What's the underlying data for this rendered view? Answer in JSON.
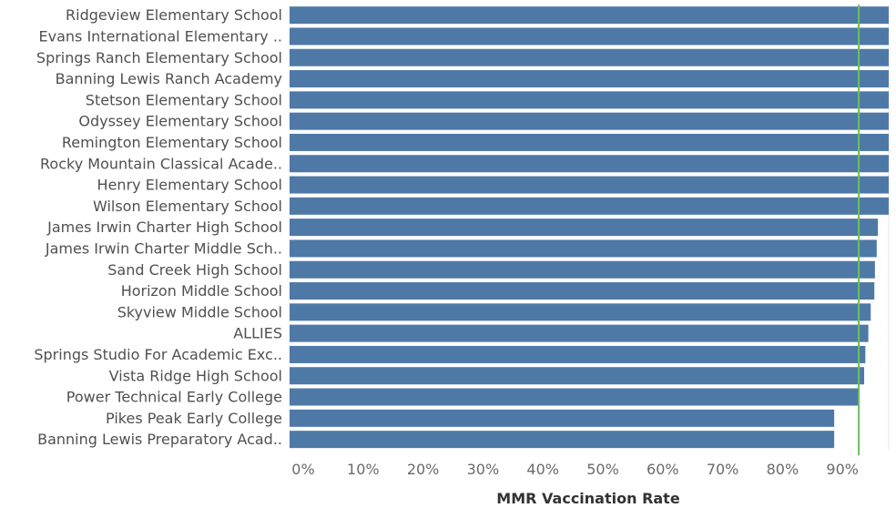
{
  "chart_data": {
    "type": "bar",
    "orientation": "horizontal",
    "categories": [
      "Ridgeview Elementary School",
      "Evans International Elementary ..",
      "Springs Ranch Elementary School",
      "Banning Lewis Ranch Academy",
      "Stetson Elementary School",
      "Odyssey Elementary School",
      "Remington Elementary School",
      "Rocky Mountain Classical Acade..",
      "Henry Elementary School",
      "Wilson Elementary School",
      "James Irwin Charter High School",
      "James Irwin Charter Middle Sch..",
      "Sand Creek High School",
      "Horizon Middle School",
      "Skyview Middle School",
      "ALLIES",
      "Springs Studio For Academic Exc..",
      "Vista Ridge High School",
      "Power Technical Early College",
      "Pikes Peak Early College",
      "Banning Lewis Preparatory Acad.."
    ],
    "values": [
      100,
      100,
      100,
      100,
      100,
      100,
      100,
      100,
      100,
      100,
      98.2,
      98.0,
      97.7,
      97.6,
      97.0,
      96.6,
      96.1,
      95.9,
      95.0,
      90.9,
      90.9
    ],
    "xlabel": "MMR Vaccination Rate",
    "xlim": [
      0,
      100
    ],
    "xticks": [
      0,
      10,
      20,
      30,
      40,
      50,
      60,
      70,
      80,
      90
    ],
    "tick_suffix": "%",
    "reference_line": {
      "value": 95,
      "color": "#6cbf5a"
    },
    "bar_color": "#4e79a7",
    "grid": false
  }
}
